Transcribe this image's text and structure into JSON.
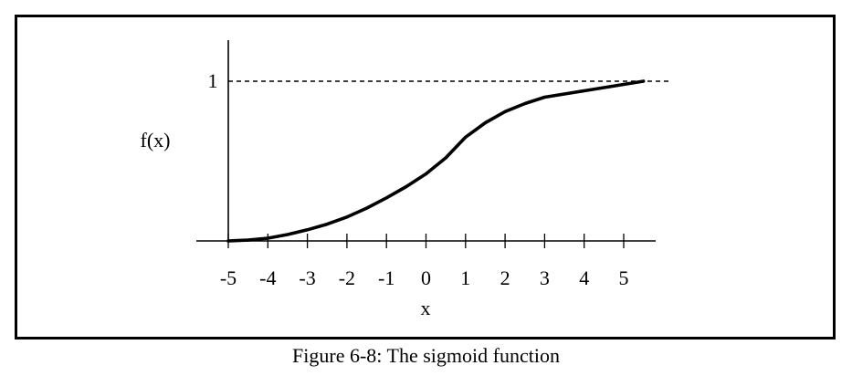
{
  "caption": "Figure 6-8: The sigmoid function",
  "chart_data": {
    "type": "line",
    "title": "",
    "xlabel": "x",
    "ylabel": "f(x)",
    "xlim": [
      -5,
      5.5
    ],
    "ylim": [
      0,
      1
    ],
    "x_ticks": [
      -5,
      -4,
      -3,
      -2,
      -1,
      0,
      1,
      2,
      3,
      4,
      5
    ],
    "x_tick_labels": [
      "-5",
      "-4",
      "-3",
      "-2",
      "-1",
      "0",
      "1",
      "2",
      "3",
      "4",
      "5"
    ],
    "y_tick_labels": [
      {
        "value": 1,
        "label": "1"
      }
    ],
    "reference_lines": [
      {
        "axis": "y",
        "value": 1,
        "style": "dashed"
      }
    ],
    "series": [
      {
        "color": "#000000",
        "x": [
          -5,
          -4.5,
          -4,
          -3.5,
          -3,
          -2.5,
          -2,
          -1.5,
          -1,
          -0.5,
          0,
          0.5,
          1,
          1.5,
          2,
          2.5,
          3,
          3.5,
          4,
          4.5,
          5,
          5.5
        ],
        "y": [
          0.0,
          0.005,
          0.017,
          0.04,
          0.07,
          0.105,
          0.15,
          0.205,
          0.27,
          0.34,
          0.42,
          0.52,
          0.65,
          0.74,
          0.81,
          0.86,
          0.9,
          0.92,
          0.94,
          0.96,
          0.98,
          1.0
        ]
      }
    ],
    "grid": false,
    "legend": "none"
  }
}
